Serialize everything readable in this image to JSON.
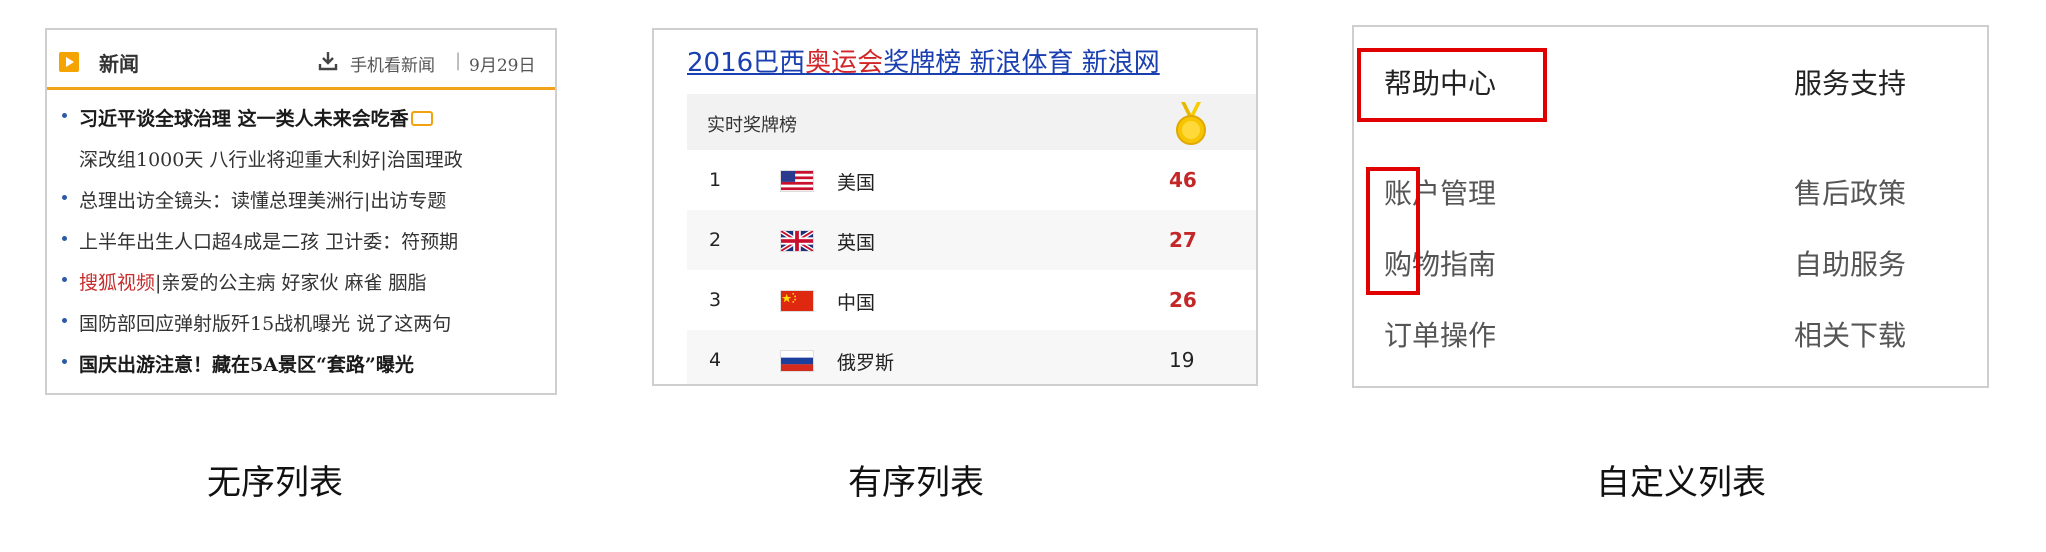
{
  "unordered": {
    "caption": "无序列表",
    "header": {
      "title": "新闻",
      "mobile": "手机看新闻",
      "separator": "|",
      "date": "9月29日"
    },
    "items": [
      "习近平谈全球治理 这一类人未来会吃香",
      "深改组1000天 八行业将迎重大利好|治国理政",
      "总理出访全镜头：读懂总理美洲行|出访专题",
      "上半年出生人口超4成是二孩 卫计委：符预期",
      "搜狐视频",
      "|亲爱的公主病 好家伙 麻雀 胭脂",
      "国防部回应弹射版歼15战机曝光 说了这两句",
      "国庆出游注意！藏在5A景区“套路”曝光"
    ],
    "accent_color": "#f1a21b"
  },
  "ordered": {
    "caption": "有序列表",
    "title": {
      "a": "2016巴西",
      "b": "奥运会",
      "c": "奖牌榜  新浪体育  新浪网"
    },
    "header_label": "实时奖牌榜",
    "rows": [
      {
        "rank": "1",
        "country": "美国",
        "gold": "46",
        "flag": "usa"
      },
      {
        "rank": "2",
        "country": "英国",
        "gold": "27",
        "flag": "uk"
      },
      {
        "rank": "3",
        "country": "中国",
        "gold": "26",
        "flag": "china"
      },
      {
        "rank": "4",
        "country": "俄罗斯",
        "gold": "19",
        "flag": "russia"
      }
    ]
  },
  "definition": {
    "caption": "自定义列表",
    "col1": {
      "term": "帮助中心",
      "items": [
        "账户管理",
        "购物指南",
        "订单操作"
      ]
    },
    "col2": {
      "term": "服务支持",
      "items": [
        "售后政策",
        "自助服务",
        "相关下载"
      ]
    },
    "highlight_color": "#e00000"
  }
}
